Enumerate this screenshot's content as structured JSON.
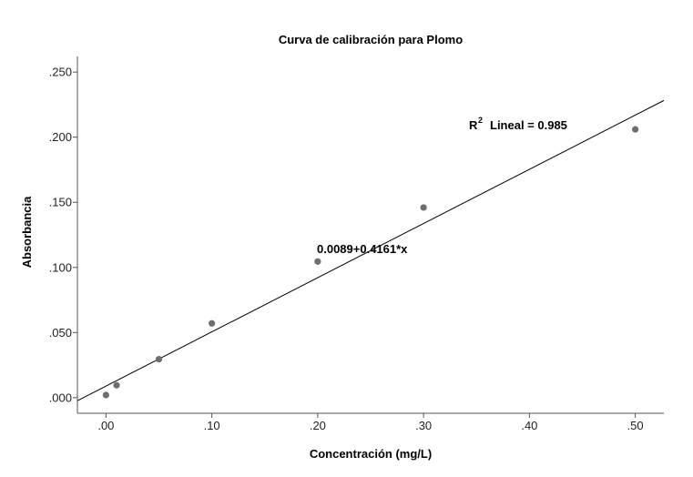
{
  "chart_data": {
    "type": "scatter",
    "title": "Curva de calibración para Plomo",
    "xlabel": "Concentración (mg/L)",
    "ylabel": "Absorbancia",
    "xlim": [
      -0.027,
      0.527
    ],
    "ylim": [
      -0.012,
      0.262
    ],
    "x_ticks": [
      0.0,
      0.1,
      0.2,
      0.3,
      0.4,
      0.5
    ],
    "x_tick_labels": [
      ".00",
      ".10",
      ".20",
      ".30",
      ".40",
      ".50"
    ],
    "y_ticks": [
      0.0,
      0.05,
      0.1,
      0.15,
      0.2,
      0.25
    ],
    "y_tick_labels": [
      ".000",
      ".050",
      ".100",
      ".150",
      ".200",
      ".250"
    ],
    "grid": false,
    "legend": "none",
    "point_color": "#6e6e6e",
    "line_color": "#000000",
    "points": [
      {
        "x": 0.0,
        "y": 0.002
      },
      {
        "x": 0.01,
        "y": 0.0095
      },
      {
        "x": 0.05,
        "y": 0.0295
      },
      {
        "x": 0.1,
        "y": 0.057
      },
      {
        "x": 0.2,
        "y": 0.1045
      },
      {
        "x": 0.3,
        "y": 0.146
      },
      {
        "x": 0.5,
        "y": 0.206
      }
    ],
    "fit": {
      "intercept": 0.0089,
      "slope": 0.4161,
      "equation_label": "0.0089+0.4161*x",
      "r2_prefix": "R",
      "r2_superscript": "2",
      "r2_text": "Lineal = 0.985"
    }
  }
}
